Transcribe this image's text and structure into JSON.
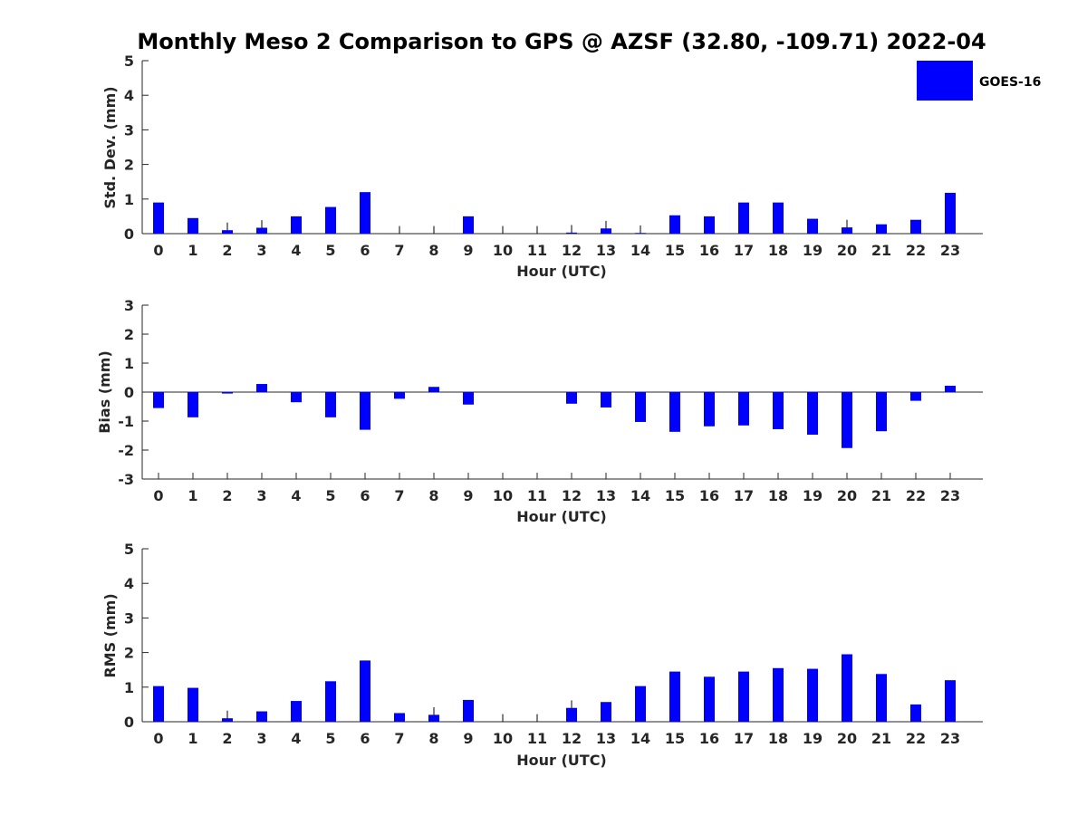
{
  "chart_data": {
    "type": "bar",
    "title": "Monthly Meso 2 Comparison to GPS @ AZSF (32.80, -109.71) 2022-04",
    "series_color": "#0000ff",
    "legend": {
      "label": "GOES-16",
      "placement": "top-right"
    },
    "categories": [
      0,
      1,
      2,
      3,
      4,
      5,
      6,
      7,
      8,
      9,
      10,
      11,
      12,
      13,
      14,
      15,
      16,
      17,
      18,
      19,
      20,
      21,
      22,
      23
    ],
    "panels": [
      {
        "key": "std",
        "ylabel": "Std. Dev. (mm)",
        "xlabel": "Hour (UTC)",
        "ylim": [
          0,
          5
        ],
        "yticks": [
          0,
          1,
          2,
          3,
          4,
          5
        ],
        "values": [
          0.9,
          0.45,
          0.1,
          0.17,
          0.5,
          0.77,
          1.2,
          null,
          null,
          0.5,
          null,
          null,
          0.03,
          0.15,
          0.02,
          0.53,
          0.5,
          0.9,
          0.9,
          0.43,
          0.18,
          0.27,
          0.4,
          1.18
        ],
        "errors": [
          null,
          null,
          0.22,
          0.22,
          null,
          null,
          null,
          0.22,
          0.22,
          null,
          0.22,
          0.22,
          0.22,
          0.22,
          0.22,
          null,
          null,
          null,
          null,
          null,
          0.22,
          null,
          null,
          null
        ]
      },
      {
        "key": "bias",
        "ylabel": "Bias (mm)",
        "xlabel": "Hour (UTC)",
        "ylim": [
          -3,
          3
        ],
        "yticks": [
          -3,
          -2,
          -1,
          0,
          1,
          2,
          3
        ],
        "values": [
          -0.55,
          -0.87,
          -0.05,
          0.28,
          -0.35,
          -0.87,
          -1.3,
          -0.23,
          0.18,
          -0.43,
          null,
          null,
          -0.4,
          -0.53,
          -1.03,
          -1.37,
          -1.18,
          -1.15,
          -1.28,
          -1.47,
          -1.93,
          -1.35,
          -0.3,
          0.22
        ],
        "errors": []
      },
      {
        "key": "rms",
        "ylabel": "RMS (mm)",
        "xlabel": "Hour (UTC)",
        "ylim": [
          0,
          5
        ],
        "yticks": [
          0,
          1,
          2,
          3,
          4,
          5
        ],
        "values": [
          1.03,
          0.98,
          0.1,
          0.3,
          0.6,
          1.17,
          1.77,
          0.25,
          0.2,
          0.63,
          null,
          null,
          0.4,
          0.57,
          1.03,
          1.45,
          1.3,
          1.45,
          1.55,
          1.53,
          1.95,
          1.38,
          0.5,
          1.2
        ],
        "errors": [
          null,
          null,
          0.22,
          null,
          null,
          null,
          null,
          null,
          0.22,
          null,
          0.22,
          0.22,
          0.22,
          null,
          null,
          null,
          null,
          null,
          null,
          null,
          null,
          null,
          null,
          null
        ]
      }
    ]
  }
}
